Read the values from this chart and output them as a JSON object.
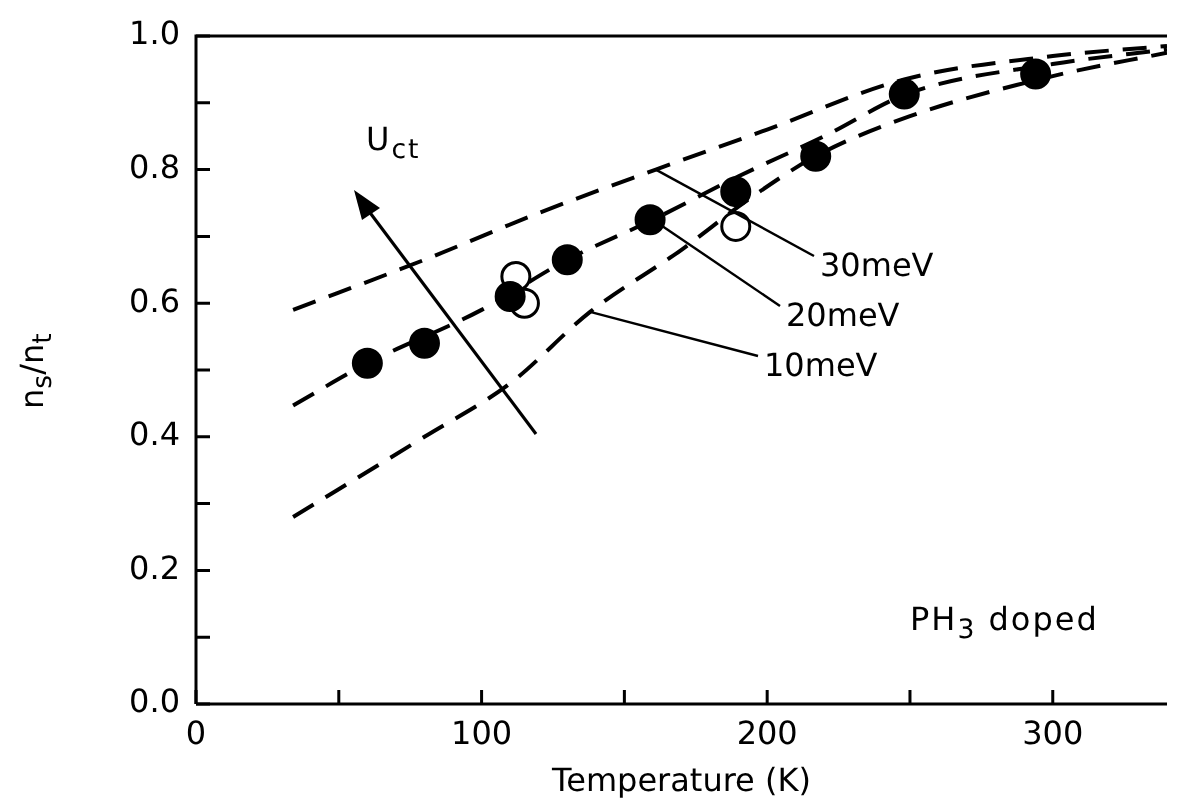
{
  "chart_data": {
    "type": "scatter",
    "xlabel": "Temperature (K)",
    "ylabel": "n$_{s}$/n$_{t}$",
    "xlim": [
      0,
      340
    ],
    "xticks": [
      0,
      {
        "value": 50,
        "label": null
      },
      100,
      {
        "value": 150,
        "label": null
      },
      200,
      {
        "value": 250,
        "label": null
      },
      300
    ],
    "ylim": [
      0,
      1
    ],
    "yticks": [
      {
        "value": 0,
        "label": "0.0"
      },
      {
        "value": 0.1,
        "label": null
      },
      0.2,
      {
        "value": 0.3,
        "label": null
      },
      0.4,
      {
        "value": 0.5,
        "label": null
      },
      0.6,
      {
        "value": 0.7,
        "label": null
      },
      0.8,
      {
        "value": 0.9,
        "label": null
      },
      {
        "value": 1,
        "label": "1.0"
      }
    ],
    "grid": false,
    "legend": false,
    "marker": "circle",
    "annotations": [
      "U$_{ct}$",
      "PH$_{3}$ doped",
      {
        "text": "30meV",
        "x": 161,
        "y": 0.8
      },
      {
        "text": "20meV",
        "x": 160,
        "y": 0.725
      },
      {
        "text": "10meV",
        "x": 138,
        "y": 0.587
      }
    ],
    "series": [
      {
        "type": "line",
        "color": "#000000",
        "line_style": "dashed",
        "marker": "none",
        "x": [
          34,
          80,
          120,
          161,
          200,
          248,
          300,
          340
        ],
        "values": [
          0.59,
          0.665,
          0.735,
          0.8,
          0.86,
          0.935,
          0.97,
          0.985
        ]
      },
      {
        "type": "line",
        "color": "#000000",
        "line_style": "dashed",
        "marker": "none",
        "x": [
          34,
          60,
          100,
          130,
          160,
          190,
          220,
          250,
          300,
          340
        ],
        "values": [
          0.447,
          0.51,
          0.59,
          0.665,
          0.725,
          0.79,
          0.85,
          0.915,
          0.958,
          0.98
        ]
      },
      {
        "type": "line",
        "color": "#000000",
        "line_style": "dashed",
        "marker": "none",
        "x": [
          34,
          80,
          110,
          138,
          170,
          193,
          217,
          250,
          300,
          340
        ],
        "values": [
          0.28,
          0.4,
          0.48,
          0.587,
          0.68,
          0.754,
          0.82,
          0.88,
          0.94,
          0.975
        ]
      },
      {
        "color": "#000000",
        "x": [
          60,
          80,
          110,
          130,
          159,
          189,
          217,
          248,
          294
        ],
        "values": [
          0.51,
          0.54,
          0.61,
          0.665,
          0.725,
          0.767,
          0.82,
          0.913,
          0.943
        ]
      },
      {
        "color": "#ffffff",
        "x": [
          112,
          115,
          189
        ],
        "values": [
          0.64,
          0.6,
          0.715
        ]
      }
    ]
  }
}
